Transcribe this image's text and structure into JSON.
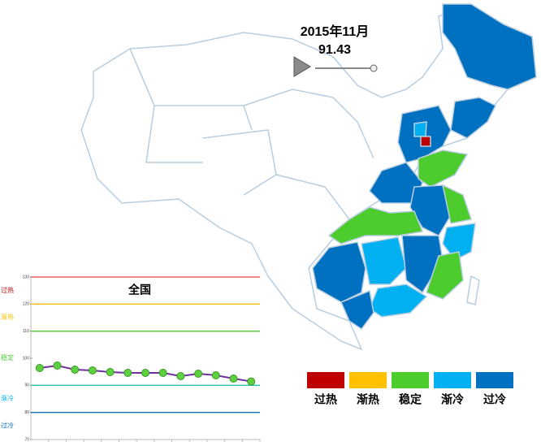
{
  "header": {
    "date": "2015年11月",
    "value": "91.43"
  },
  "legend": [
    {
      "name": "过热",
      "color": "#c00000"
    },
    {
      "name": "渐热",
      "color": "#ffc000"
    },
    {
      "name": "稳定",
      "color": "#4dcc2e"
    },
    {
      "name": "渐冷",
      "color": "#00b0f0"
    },
    {
      "name": "过冷",
      "color": "#0070c0"
    }
  ],
  "chart_data": {
    "type": "line",
    "title": "全国",
    "categories": [
      null,
      null,
      null,
      null,
      null,
      null,
      null,
      null,
      null,
      null,
      null,
      null,
      null
    ],
    "series": [
      {
        "color": "#7030a0",
        "values": [
          96.4,
          97.3,
          95.8,
          95.5,
          94.9,
          94.6,
          94.6,
          94.6,
          93.4,
          94.3,
          93.7,
          92.5,
          91.43
        ]
      }
    ],
    "ylim": [
      70,
      130
    ],
    "yticks": [
      70,
      80,
      90,
      100,
      110,
      120,
      130
    ],
    "reference_lines": [
      {
        "value": 130,
        "color": "#e04040"
      },
      {
        "value": 120,
        "color": "#ffc000"
      },
      {
        "value": 110,
        "color": "#4dcc2e"
      },
      {
        "value": 90,
        "color": "#20c0b0"
      },
      {
        "value": 80,
        "color": "#1070b0"
      }
    ]
  }
}
